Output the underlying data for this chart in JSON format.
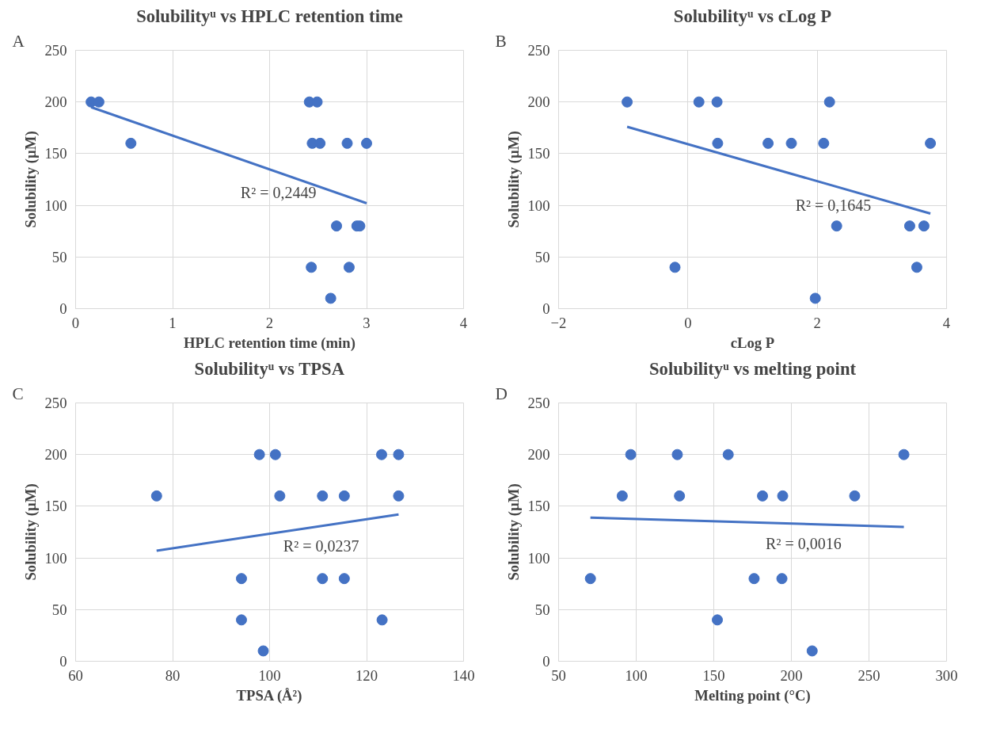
{
  "chart_data": [
    {
      "type": "scatter",
      "title": "Solubilityᵘ vs HPLC retention time",
      "xlabel": "HPLC retention time (min)",
      "ylabel": "Solubility (µM)",
      "xlim": [
        0,
        4
      ],
      "xticks": [
        0,
        1,
        2,
        3,
        4
      ],
      "ylim": [
        0,
        250
      ],
      "yticks": [
        0,
        50,
        100,
        150,
        200,
        250
      ],
      "grid": true,
      "annotations": [
        "A",
        "R² = 0,2449"
      ],
      "series": [
        {
          "color": "#4472c4",
          "marker": "circle",
          "x": [
            0.16,
            0.24,
            0.57,
            2.41,
            2.49,
            2.44,
            2.52,
            2.8,
            3.0,
            2.69,
            2.9,
            2.93,
            2.43,
            2.82,
            2.63
          ],
          "values": [
            200,
            200,
            160,
            200,
            200,
            160,
            160,
            160,
            160,
            80,
            80,
            80,
            40,
            40,
            10
          ]
        },
        {
          "type": "line",
          "color": "#4472c4",
          "x": [
            0.16,
            3.0
          ],
          "values": [
            195,
            102
          ]
        }
      ]
    },
    {
      "type": "scatter",
      "title": "Solubilityᵘ vs cLog P",
      "xlabel": "cLog P",
      "ylabel": "Solubility (µM)",
      "xlim": [
        -2,
        4
      ],
      "xticks": [
        -2,
        0,
        2,
        4
      ],
      "ylim": [
        0,
        250
      ],
      "yticks": [
        0,
        50,
        100,
        150,
        200,
        250
      ],
      "grid": true,
      "annotations": [
        "B",
        "R² = 0,1645"
      ],
      "series": [
        {
          "color": "#4472c4",
          "marker": "circle",
          "x": [
            -0.94,
            0.17,
            0.45,
            2.19,
            0.46,
            1.24,
            1.6,
            2.1,
            3.75,
            2.3,
            3.43,
            3.65,
            -0.2,
            3.54,
            1.97
          ],
          "values": [
            200,
            200,
            200,
            200,
            160,
            160,
            160,
            160,
            160,
            80,
            80,
            80,
            40,
            40,
            10
          ]
        },
        {
          "type": "line",
          "color": "#4472c4",
          "x": [
            -0.94,
            3.75
          ],
          "values": [
            176,
            92
          ]
        }
      ]
    },
    {
      "type": "scatter",
      "title": "Solubilityᵘ vs TPSA",
      "xlabel": "TPSA (Å²)",
      "ylabel": "Solubility (µM)",
      "xlim": [
        60,
        140
      ],
      "xticks": [
        60,
        80,
        100,
        120,
        140
      ],
      "ylim": [
        0,
        250
      ],
      "yticks": [
        0,
        50,
        100,
        150,
        200,
        250
      ],
      "grid": true,
      "annotations": [
        "C",
        "R² = 0,0237"
      ],
      "series": [
        {
          "color": "#4472c4",
          "marker": "circle",
          "x": [
            97.9,
            101.2,
            123.1,
            126.6,
            76.7,
            102.1,
            110.9,
            115.4,
            126.6,
            94.2,
            110.9,
            115.4,
            94.2,
            123.2,
            98.7
          ],
          "values": [
            200,
            200,
            200,
            200,
            160,
            160,
            160,
            160,
            160,
            80,
            80,
            80,
            40,
            40,
            10
          ]
        },
        {
          "type": "line",
          "color": "#4472c4",
          "x": [
            76.7,
            126.6
          ],
          "values": [
            107,
            142
          ]
        }
      ]
    },
    {
      "type": "scatter",
      "title": "Solubilityᵘ vs melting point",
      "xlabel": "Melting point (°C)",
      "ylabel": "Solubility (µM)",
      "xlim": [
        50,
        300
      ],
      "xticks": [
        50,
        100,
        150,
        200,
        250,
        300
      ],
      "ylim": [
        0,
        250
      ],
      "yticks": [
        0,
        50,
        100,
        150,
        200,
        250
      ],
      "grid": true,
      "annotations": [
        "D",
        "R² = 0,0016"
      ],
      "series": [
        {
          "color": "#4472c4",
          "marker": "circle",
          "x": [
            96.5,
            126.5,
            159.3,
            272.5,
            91,
            127.9,
            181.4,
            194.4,
            240.8,
            70.5,
            176,
            193.9,
            152.3,
            213.4
          ],
          "values": [
            200,
            200,
            200,
            200,
            160,
            160,
            160,
            160,
            160,
            80,
            80,
            80,
            40,
            10
          ]
        },
        {
          "type": "line",
          "color": "#4472c4",
          "x": [
            70.5,
            272.5
          ],
          "values": [
            139,
            130
          ]
        }
      ]
    }
  ]
}
